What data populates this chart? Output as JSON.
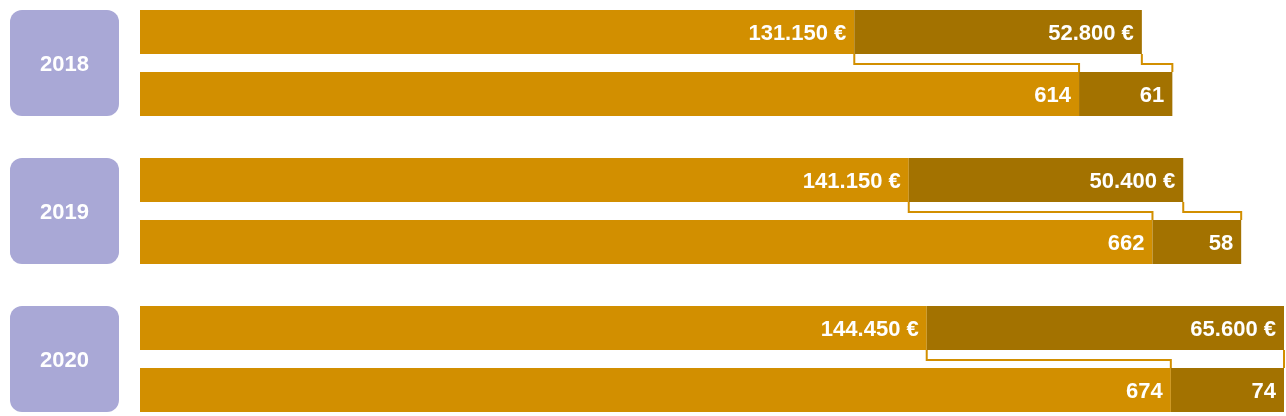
{
  "chart_data": [
    {
      "type": "bar",
      "orientation": "horizontal",
      "stacked": true,
      "categories": [
        "2018",
        "2019",
        "2020"
      ],
      "tick_labels": "y",
      "series": [
        {
          "color": "#d28f00",
          "values": [
            131150,
            141150,
            144450
          ],
          "value_labels": [
            "131.150 €",
            "141.150 €",
            "144.450 €"
          ]
        },
        {
          "color": "#a37200",
          "values": [
            52800,
            50400,
            65600
          ],
          "value_labels": [
            "52.800 €",
            "50.400 €",
            "65.600 €"
          ]
        }
      ]
    },
    {
      "type": "bar",
      "orientation": "horizontal",
      "stacked": true,
      "categories": [
        null,
        null,
        null
      ],
      "tick_labels": false,
      "data_labels": true,
      "series": [
        {
          "color": "#d28f00",
          "values": [
            614,
            662,
            674
          ]
        },
        {
          "color": "#a37200",
          "values": [
            61,
            58,
            74
          ]
        }
      ]
    }
  ]
}
